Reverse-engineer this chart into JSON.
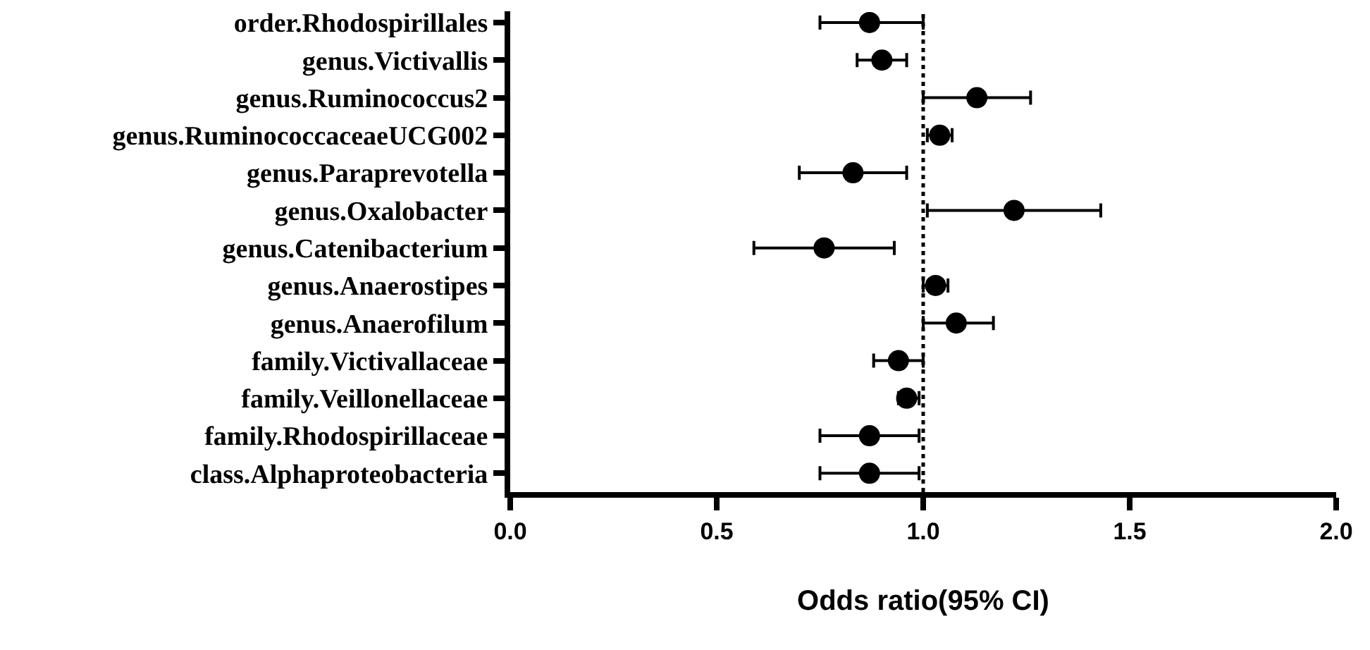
{
  "chart_data": {
    "type": "scatter",
    "orientation": "horizontal",
    "xlabel": "Odds ratio(95% CI)",
    "categories": [
      "order.Rhodospirillales",
      "genus.Victivallis",
      "genus.Ruminococcus2",
      "genus.RuminococcaceaeUCG002",
      "genus.Paraprevotella",
      "genus.Oxalobacter",
      "genus.Catenibacterium",
      "genus.Anaerostipes",
      "genus.Anaerofilum",
      "family.Victivallaceae",
      "family.Veillonellaceae",
      "family.Rhodospirillaceae",
      "class.Alphaproteobacteria"
    ],
    "values": [
      0.87,
      0.9,
      1.13,
      1.04,
      0.83,
      1.22,
      0.76,
      1.03,
      1.08,
      0.94,
      0.96,
      0.87,
      0.87
    ],
    "errors": [
      [
        0.75,
        1.0
      ],
      [
        0.84,
        0.96
      ],
      [
        1.0,
        1.26
      ],
      [
        1.01,
        1.07
      ],
      [
        0.7,
        0.96
      ],
      [
        1.01,
        1.43
      ],
      [
        0.59,
        0.93
      ],
      [
        1.0,
        1.06
      ],
      [
        1.0,
        1.17
      ],
      [
        0.88,
        1.0
      ],
      [
        0.94,
        0.99
      ],
      [
        0.75,
        0.99
      ],
      [
        0.75,
        0.99
      ]
    ],
    "color": "#000000",
    "marker": "circle",
    "xlim": [
      0,
      2
    ],
    "xticks": [
      {
        "value": 0,
        "label": "0.0"
      },
      {
        "value": 0.5,
        "label": "0.5"
      },
      {
        "value": 1,
        "label": "1.0"
      },
      {
        "value": 1.5,
        "label": "1.5"
      },
      {
        "value": 2,
        "label": "2.0"
      }
    ],
    "ref_lines": [
      {
        "axis": "x",
        "value": 1,
        "line_style": "dotted"
      }
    ],
    "grid": false
  }
}
